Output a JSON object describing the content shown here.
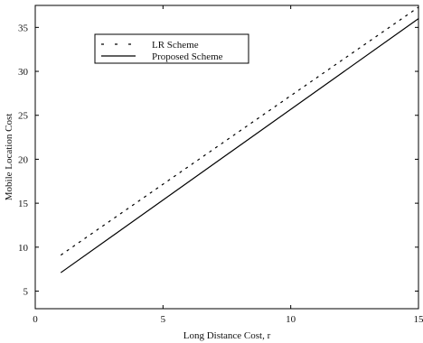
{
  "chart_data": {
    "type": "line",
    "title": "",
    "xlabel": "Long Distance Cost, r",
    "ylabel": "Mobile Location Cost",
    "xlim": [
      0,
      15
    ],
    "ylim": [
      3,
      37.5
    ],
    "xticks": [
      0,
      5,
      10,
      15
    ],
    "yticks": [
      5,
      10,
      15,
      20,
      25,
      30,
      35
    ],
    "grid": false,
    "legend_position": "top-left",
    "series": [
      {
        "name": "LR Scheme",
        "style": "dashed",
        "color": "#000000",
        "x": [
          1,
          15
        ],
        "y": [
          9.1,
          37.3
        ]
      },
      {
        "name": "Proposed Scheme",
        "style": "solid",
        "color": "#000000",
        "x": [
          1,
          15
        ],
        "y": [
          7.1,
          36.0
        ]
      }
    ]
  }
}
